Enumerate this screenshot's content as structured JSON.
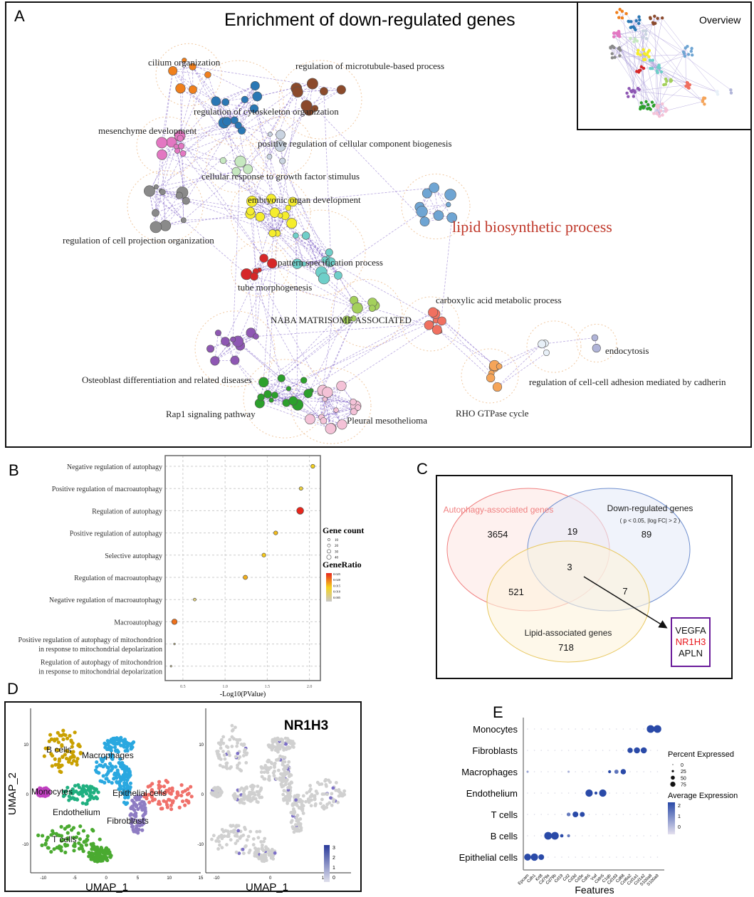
{
  "panels": {
    "a": "A",
    "b": "B",
    "c": "C",
    "d": "D",
    "e": "E"
  },
  "network": {
    "title": "Enrichment of down-regulated genes",
    "overview_label": "Overview",
    "highlight_color": "#c0392b",
    "edge_color": "#7b5cc4",
    "clusters": [
      {
        "label": "cilium organization",
        "color": "#f07f1c"
      },
      {
        "label": "regulation of microtubule-based process",
        "color": "#8b4a2b"
      },
      {
        "label": "regulation of cytoskeleton organization",
        "color": "#2a77b4"
      },
      {
        "label": "mesenchyme development",
        "color": "#e377c2"
      },
      {
        "label": "positive regulation of cellular component biogenesis",
        "color": "#c9d3e0"
      },
      {
        "label": "cellular response to growth factor stimulus",
        "color": "#c6e8c0"
      },
      {
        "label": "regulation of cell projection organization",
        "color": "#8a8a8a"
      },
      {
        "label": "embryonic organ development",
        "color": "#f5ed2c"
      },
      {
        "label": "pattern specification process",
        "color": "#6fcfc9"
      },
      {
        "label": "tube morphogenesis",
        "color": "#d62728"
      },
      {
        "label": "lipid biosynthetic process",
        "color": "#6fa5d3",
        "highlight": true
      },
      {
        "label": "NABA MATRISOME ASSOCIATED",
        "color": "#a4d05c"
      },
      {
        "label": "carboxylic acid metabolic process",
        "color": "#f07060"
      },
      {
        "label": "Osteoblast differentiation and related diseases",
        "color": "#8e57b3"
      },
      {
        "label": "Rap1 signaling pathway",
        "color": "#2ca02c"
      },
      {
        "label": "Pleural mesothelioma",
        "color": "#f4c2d7"
      },
      {
        "label": "RHO GTPase cycle",
        "color": "#f5a55a"
      },
      {
        "label": "regulation of cell-cell adhesion mediated by cadherin",
        "color": "#e8f0f8"
      },
      {
        "label": "endocytosis",
        "color": "#b0b4d8"
      }
    ]
  },
  "chart_data": [
    {
      "type": "scatter",
      "panel": "B",
      "xlabel": "-Log10(PValue)",
      "xticks": [
        0.5,
        1.0,
        1.5,
        2.0
      ],
      "xtick_labels": [
        "0.5",
        "1.0",
        "1.5",
        "2.0"
      ],
      "xlim": [
        0.29,
        2.13
      ],
      "grid": true,
      "categories": [
        "Negative regulation of autophagy",
        "Positive regulation of macroautophagy",
        "Regulation of autophagy",
        "Positive regulation of autophagy",
        "Selective autophagy",
        "Regulation of macroautophagy",
        "Negative regulation of macroautophagy",
        "Macroautophagy",
        "Positive regulation of autophagy of mitochondrion|in response to mitochondrial depolarization",
        "Regulation of autophagy of mitochondrion|in response to mitochondrial depolarization"
      ],
      "x": [
        2.04,
        1.9,
        1.89,
        1.6,
        1.46,
        1.24,
        0.64,
        0.4,
        0.4,
        0.36
      ],
      "gene_count": [
        14,
        12,
        30,
        14,
        14,
        16,
        8,
        22,
        2,
        2
      ],
      "gene_ratio": [
        0.011,
        0.009,
        0.025,
        0.013,
        0.012,
        0.014,
        0.005,
        0.019,
        0.003,
        0.003
      ],
      "legend": {
        "size_title": "Gene count",
        "size_values": [
          "10",
          "20",
          "30",
          "40"
        ],
        "color_title": "GeneRatio",
        "color_values": [
          "0.025",
          "0.020",
          "0.015",
          "0.010",
          "0.005"
        ],
        "color_low": "#c8c8c8",
        "color_mid": "#f5d21c",
        "color_high": "#e8261c",
        "placement": "right"
      }
    },
    {
      "type": "venn",
      "panel": "C",
      "sets": [
        {
          "name": "Autophagy-associated genes",
          "color": "#f08080"
        },
        {
          "name": "Down-regulated genes",
          "sub": "( p < 0.05, |log FC| > 2 )",
          "color": "#6f8fcf"
        },
        {
          "name": "Lipid-associated genes",
          "color": "#e8c860"
        }
      ],
      "regions": {
        "autophagy_only": "3654",
        "down_only": "89",
        "lipid_only": "718",
        "autophagy_down": "19",
        "autophagy_lipid": "521",
        "down_lipid": "7",
        "all": "3"
      },
      "shared_genes": [
        "VEGFA",
        "NR1H3",
        "APLN"
      ],
      "shared_highlight": "NR1H3",
      "box_color": "#6a1b9a"
    },
    {
      "type": "scatter",
      "panel": "D-left",
      "xlabel": "UMAP_1",
      "ylabel": "UMAP_2",
      "xticks": [
        "-10",
        "-5",
        "0",
        "5",
        "10",
        "15"
      ],
      "yticks": [
        "10",
        "0",
        "-10"
      ],
      "xlim": [
        -12,
        15
      ],
      "ylim": [
        -15,
        15
      ],
      "clusters": [
        {
          "name": "B cells",
          "color": "#c9a000",
          "x": -7,
          "y": 8
        },
        {
          "name": "Macrophages",
          "color": "#2aa8e0",
          "x": 2,
          "y": 6
        },
        {
          "name": "Monocytes",
          "color": "#c040c0",
          "x": -10,
          "y": 0.5
        },
        {
          "name": "Epithelial cells",
          "color": "#f0706a",
          "x": 10,
          "y": 1
        },
        {
          "name": "Endothelium",
          "color": "#20b080",
          "x": -4,
          "y": -0.5
        },
        {
          "name": "Fibroblasts",
          "color": "#8e7cc3",
          "x": 5,
          "y": -4
        },
        {
          "name": "T cells",
          "color": "#4aaa30",
          "x": -4,
          "y": -9
        }
      ]
    },
    {
      "type": "scatter",
      "panel": "D-right",
      "title": "NR1H3",
      "xlabel": "UMAP_1",
      "xticks": [
        "-10",
        "0",
        "10"
      ],
      "yticks": [
        "10",
        "0",
        "-10"
      ],
      "colorbar": {
        "values": [
          "3",
          "2",
          "1",
          "0"
        ],
        "low": "#e0e0ec",
        "high": "#2a3a9a"
      },
      "base_color": "#d0d0d0"
    },
    {
      "type": "dot",
      "panel": "E",
      "xlabel": "Features",
      "rows": [
        "Monocytes",
        "Fibroblasts",
        "Macrophages",
        "Endothelium",
        "T cells",
        "B cells",
        "Epithelial cells"
      ],
      "features": [
        "Epcam",
        "Cdh1",
        "Krt8",
        "Cd79a",
        "Cd79b",
        "Cd19",
        "Cd2",
        "Cd3d",
        "Cd3e",
        "Cdh5",
        "Vwf",
        "Cldn5",
        "C1qb",
        "Cd163",
        "Cd68",
        "Col6a2",
        "Col1a1",
        "Col1a2",
        "S100a8",
        "S100a9"
      ],
      "dots": [
        {
          "row": "Monocytes",
          "feature": "S100a8",
          "pct": 80,
          "avg": 2
        },
        {
          "row": "Monocytes",
          "feature": "S100a9",
          "pct": 80,
          "avg": 2
        },
        {
          "row": "Fibroblasts",
          "feature": "Col6a2",
          "pct": 50,
          "avg": 2
        },
        {
          "row": "Fibroblasts",
          "feature": "Col1a1",
          "pct": 60,
          "avg": 2
        },
        {
          "row": "Fibroblasts",
          "feature": "Col1a2",
          "pct": 60,
          "avg": 2
        },
        {
          "row": "Macrophages",
          "feature": "C1qb",
          "pct": 20,
          "avg": 2
        },
        {
          "row": "Macrophages",
          "feature": "Cd163",
          "pct": 35,
          "avg": 1.3
        },
        {
          "row": "Macrophages",
          "feature": "Cd68",
          "pct": 50,
          "avg": 2
        },
        {
          "row": "Macrophages",
          "feature": "Epcam",
          "pct": 10,
          "avg": 0.5
        },
        {
          "row": "Macrophages",
          "feature": "Cd2",
          "pct": 10,
          "avg": 0.3
        },
        {
          "row": "Endothelium",
          "feature": "Cdh5",
          "pct": 75,
          "avg": 2
        },
        {
          "row": "Endothelium",
          "feature": "Vwf",
          "pct": 20,
          "avg": 2
        },
        {
          "row": "Endothelium",
          "feature": "Cldn5",
          "pct": 75,
          "avg": 2
        },
        {
          "row": "T cells",
          "feature": "Cd2",
          "pct": 30,
          "avg": 1.2
        },
        {
          "row": "T cells",
          "feature": "Cd3d",
          "pct": 55,
          "avg": 2
        },
        {
          "row": "T cells",
          "feature": "Cd3e",
          "pct": 45,
          "avg": 2
        },
        {
          "row": "B cells",
          "feature": "Cd79a",
          "pct": 80,
          "avg": 2
        },
        {
          "row": "B cells",
          "feature": "Cd79b",
          "pct": 80,
          "avg": 2
        },
        {
          "row": "B cells",
          "feature": "Cd19",
          "pct": 25,
          "avg": 2
        },
        {
          "row": "B cells",
          "feature": "Cd2",
          "pct": 20,
          "avg": 1.2
        },
        {
          "row": "Epithelial cells",
          "feature": "Epcam",
          "pct": 70,
          "avg": 2
        },
        {
          "row": "Epithelial cells",
          "feature": "Cdh1",
          "pct": 75,
          "avg": 2
        },
        {
          "row": "Epithelial cells",
          "feature": "Krt8",
          "pct": 55,
          "avg": 2
        }
      ],
      "legend": {
        "size_title": "Percent Expressed",
        "size_values": [
          "0",
          "25",
          "50",
          "75"
        ],
        "color_title": "Average Expression",
        "color_values": [
          "2",
          "1",
          "0"
        ],
        "low": "#e4e0ee",
        "high": "#2a4aa8"
      }
    }
  ]
}
